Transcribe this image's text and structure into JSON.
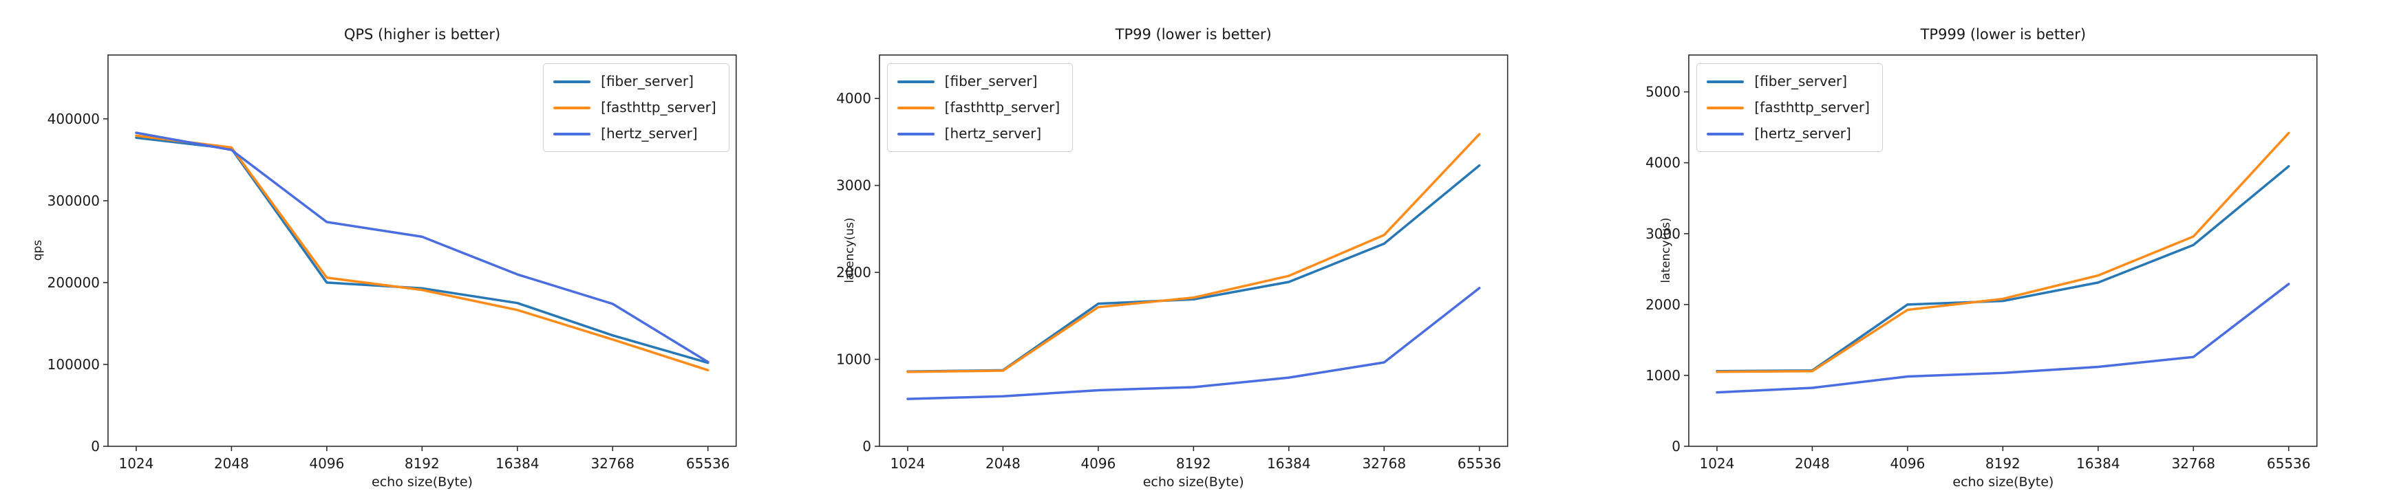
{
  "figure": {
    "background": "#ffffff"
  },
  "chart_data": [
    {
      "type": "line",
      "title": "QPS (higher is better)",
      "xlabel": "echo size(Byte)",
      "ylabel": "qps",
      "categories": [
        "1024",
        "2048",
        "4096",
        "8192",
        "16384",
        "32768",
        "65536"
      ],
      "x_scale": "categorical-log2",
      "ylim": [
        0,
        478000
      ],
      "yticks": [
        0,
        100000,
        200000,
        300000,
        400000
      ],
      "grid": false,
      "legend": {
        "position": "upper right"
      },
      "series": [
        {
          "name": "[fiber_server]",
          "color": "#2878b5",
          "values": [
            377000,
            363500,
            200000,
            193000,
            175000,
            135500,
            102000
          ]
        },
        {
          "name": "[fasthttp_server]",
          "color": "#ff8c1a",
          "values": [
            379500,
            365000,
            206000,
            191000,
            166500,
            130500,
            93000
          ]
        },
        {
          "name": "[hertz_server]",
          "color": "#4a6de0",
          "values": [
            383000,
            362000,
            274000,
            256000,
            210000,
            174000,
            103000
          ]
        }
      ]
    },
    {
      "type": "line",
      "title": "TP99 (lower is better)",
      "xlabel": "echo size(Byte)",
      "ylabel": "latency(us)",
      "categories": [
        "1024",
        "2048",
        "4096",
        "8192",
        "16384",
        "32768",
        "65536"
      ],
      "x_scale": "categorical-log2",
      "ylim": [
        0,
        4500
      ],
      "yticks": [
        0,
        1000,
        2000,
        3000,
        4000
      ],
      "grid": false,
      "legend": {
        "position": "upper left"
      },
      "series": [
        {
          "name": "[fiber_server]",
          "color": "#2878b5",
          "values": [
            860,
            875,
            1640,
            1690,
            1890,
            2330,
            3230
          ]
        },
        {
          "name": "[fasthttp_server]",
          "color": "#ff8c1a",
          "values": [
            855,
            870,
            1600,
            1710,
            1960,
            2430,
            3590
          ]
        },
        {
          "name": "[hertz_server]",
          "color": "#4a6de0",
          "values": [
            545,
            575,
            645,
            680,
            790,
            965,
            1820
          ]
        }
      ]
    },
    {
      "type": "line",
      "title": "TP999 (lower is better)",
      "xlabel": "echo size(Byte)",
      "ylabel": "latency(us)",
      "categories": [
        "1024",
        "2048",
        "4096",
        "8192",
        "16384",
        "32768",
        "65536"
      ],
      "x_scale": "categorical-log2",
      "ylim": [
        0,
        5520
      ],
      "yticks": [
        0,
        1000,
        2000,
        3000,
        4000,
        5000
      ],
      "grid": false,
      "legend": {
        "position": "upper left"
      },
      "series": [
        {
          "name": "[fiber_server]",
          "color": "#2878b5",
          "values": [
            1060,
            1070,
            2000,
            2050,
            2310,
            2840,
            3950
          ]
        },
        {
          "name": "[fasthttp_server]",
          "color": "#ff8c1a",
          "values": [
            1050,
            1060,
            1925,
            2080,
            2410,
            2960,
            4420
          ]
        },
        {
          "name": "[hertz_server]",
          "color": "#4a6de0",
          "values": [
            760,
            825,
            985,
            1035,
            1120,
            1260,
            2290
          ]
        }
      ]
    }
  ]
}
